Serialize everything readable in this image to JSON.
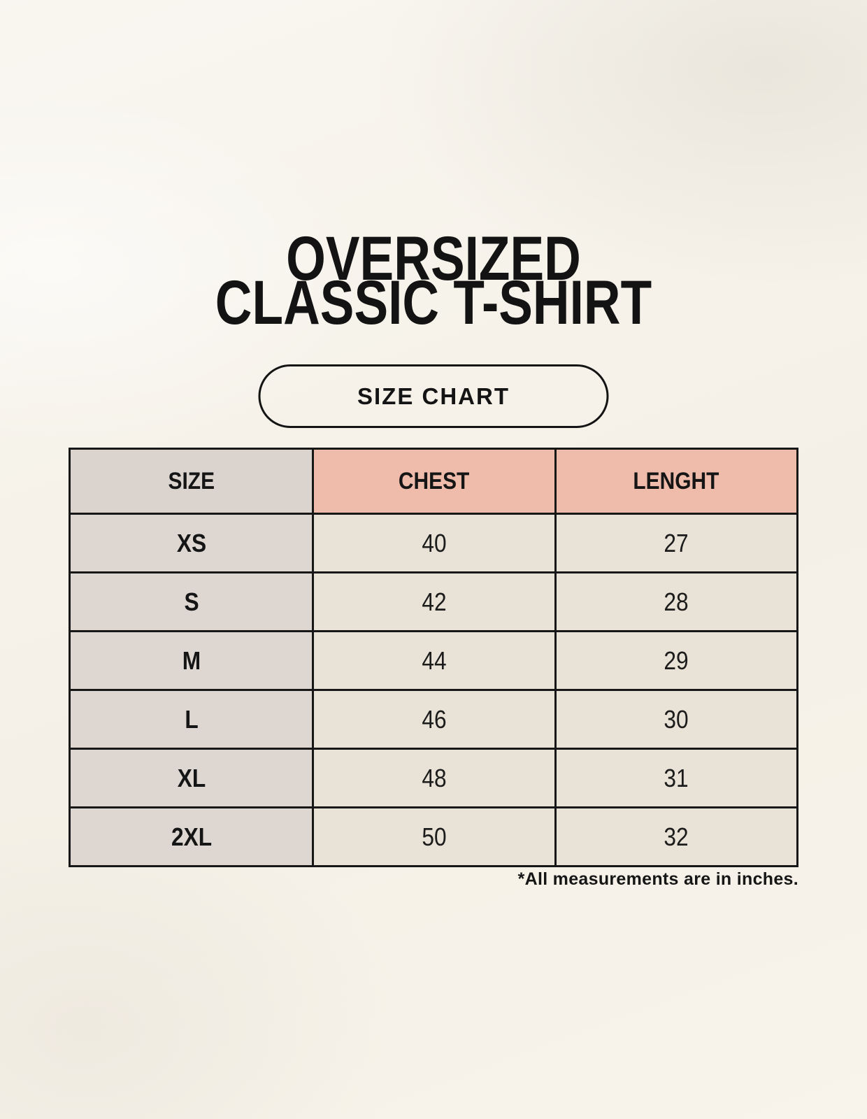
{
  "header": {
    "title_line1": "OVERSIZED",
    "title_line2": "CLASSIC T-SHIRT",
    "badge_label": "SIZE CHART"
  },
  "size_chart": {
    "columns": [
      "SIZE",
      "CHEST",
      "LENGHT"
    ],
    "rows": [
      {
        "size": "XS",
        "chest": "40",
        "length": "27"
      },
      {
        "size": "S",
        "chest": "42",
        "length": "28"
      },
      {
        "size": "M",
        "chest": "44",
        "length": "29"
      },
      {
        "size": "L",
        "chest": "46",
        "length": "30"
      },
      {
        "size": "XL",
        "chest": "48",
        "length": "31"
      },
      {
        "size": "2XL",
        "chest": "50",
        "length": "32"
      }
    ],
    "footnote": "*All measurements are in inches.",
    "units": "inches",
    "colors": {
      "page_background": "#f6f2e9",
      "header_size_bg": "#dbd4ce",
      "header_measure_bg": "#efbcab",
      "cell_size_bg": "#ded7d1",
      "cell_value_bg": "#e9e2d6",
      "border": "#171717"
    }
  }
}
